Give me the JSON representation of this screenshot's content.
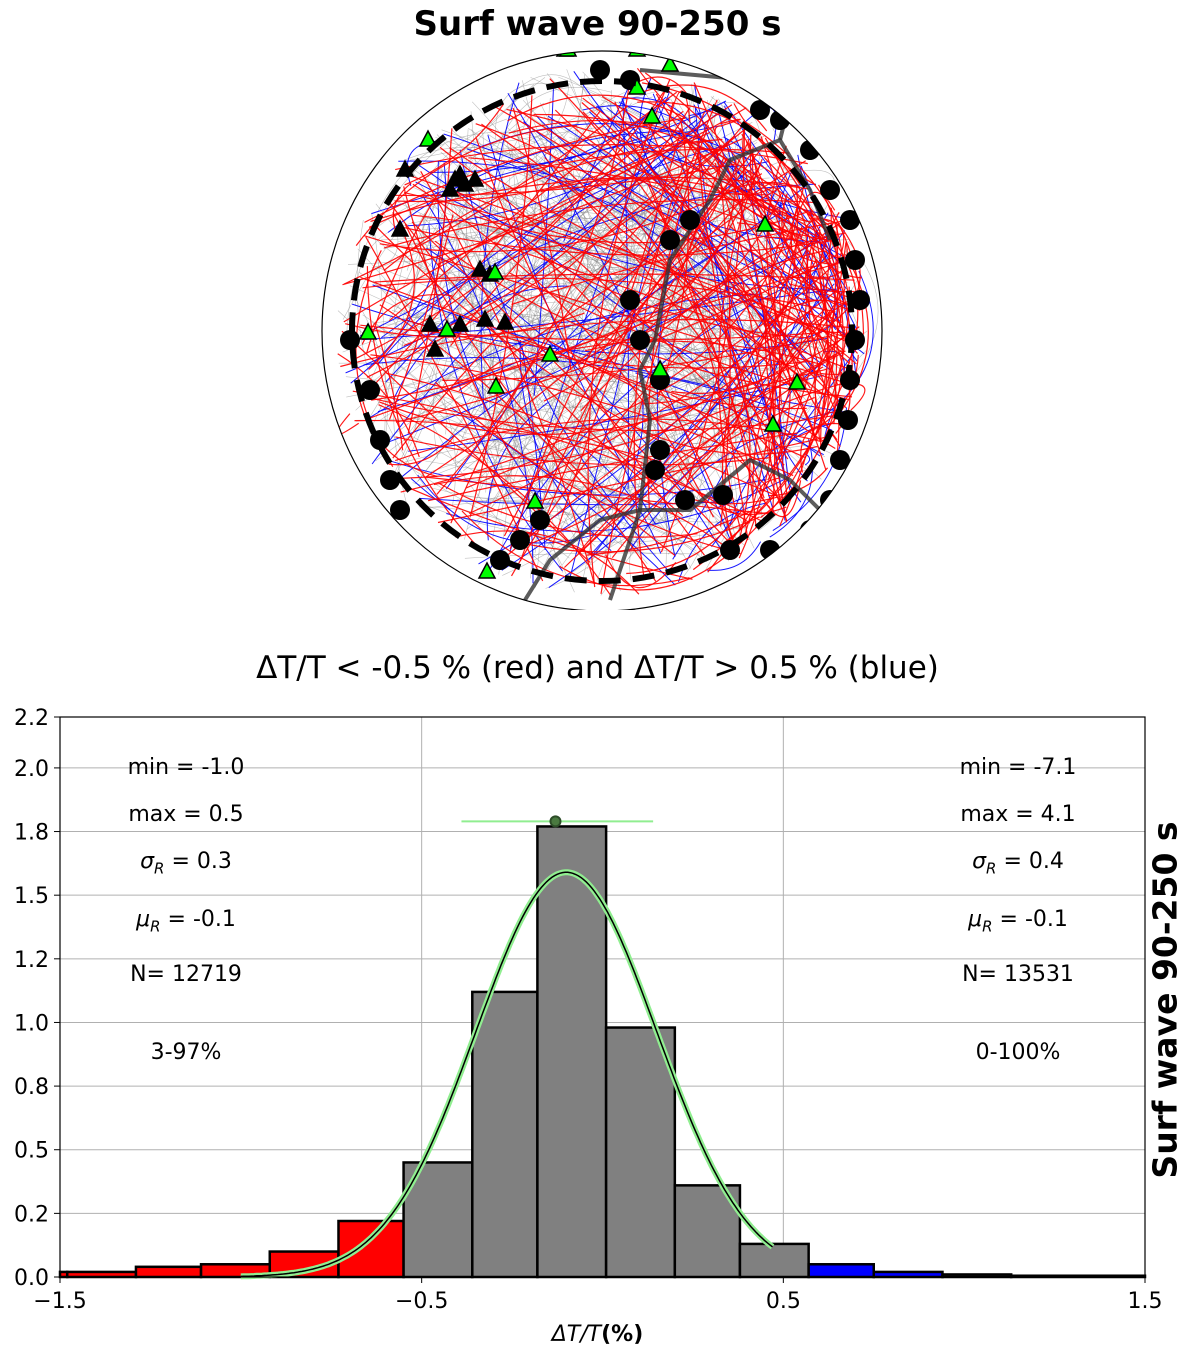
{
  "title": "Surf wave 90-250 s",
  "subtitle": "ΔT/T < -0.5 % (red)   and  ΔT/T > 0.5 %  (blue)",
  "side_label": "Surf wave 90-250 s",
  "colors": {
    "negative": "#ff0000",
    "positive": "#0000ff",
    "neutral_bar": "#808080",
    "gauss_outer": "#90ee90",
    "gauss_inner": "#000000",
    "station": "#00ff00",
    "paths_gray": "#808080"
  },
  "stats_left": {
    "min": "min = -1.0",
    "max": "max = 0.5",
    "sigma": "σ_R = 0.3",
    "mu": "μ_R = -0.1",
    "n": "N= 12719",
    "range": "3-97%"
  },
  "stats_right": {
    "min": "min = -7.1",
    "max": "max = 4.1",
    "sigma": "σ_R = 0.4",
    "mu": "μ_R = -0.1",
    "n": "N= 13531",
    "range": "0-100%"
  },
  "chart_data": {
    "type": "bar",
    "xlabel_math": "ΔT/T",
    "xlabel_unit": "(%)",
    "xlim": [
      -1.5,
      1.5
    ],
    "ylim": [
      0,
      2.2
    ],
    "xticks": [
      -1.5,
      -0.5,
      0.5,
      1.5
    ],
    "xtick_labels": [
      "−1.5",
      "−0.5",
      "0.5",
      "1.5"
    ],
    "yticks": [
      0.0,
      0.25,
      0.5,
      0.75,
      1.0,
      1.25,
      1.5,
      1.75,
      2.0,
      2.2
    ],
    "ytick_labels": [
      "0.0",
      "0.2",
      "0.5",
      "0.8",
      "1.0",
      "1.2",
      "1.5",
      "1.8",
      "2.0",
      "2.2"
    ],
    "grid": true,
    "bins": [
      {
        "x0": -1.5,
        "x1": -1.48,
        "value": 0.02,
        "color": "negative"
      },
      {
        "x0": -1.48,
        "x1": -1.29,
        "value": 0.02,
        "color": "negative"
      },
      {
        "x0": -1.29,
        "x1": -1.11,
        "value": 0.04,
        "color": "negative"
      },
      {
        "x0": -1.11,
        "x1": -0.92,
        "value": 0.05,
        "color": "negative"
      },
      {
        "x0": -0.92,
        "x1": -0.73,
        "value": 0.1,
        "color": "negative"
      },
      {
        "x0": -0.73,
        "x1": -0.55,
        "value": 0.22,
        "color": "negative"
      },
      {
        "x0": -0.55,
        "x1": -0.36,
        "value": 0.45,
        "color": "neutral_bar"
      },
      {
        "x0": -0.36,
        "x1": -0.18,
        "value": 1.12,
        "color": "neutral_bar"
      },
      {
        "x0": -0.18,
        "x1": 0.01,
        "value": 1.77,
        "color": "neutral_bar"
      },
      {
        "x0": 0.01,
        "x1": 0.2,
        "value": 0.98,
        "color": "neutral_bar"
      },
      {
        "x0": 0.2,
        "x1": 0.38,
        "value": 0.36,
        "color": "neutral_bar"
      },
      {
        "x0": 0.38,
        "x1": 0.57,
        "value": 0.13,
        "color": "neutral_bar"
      },
      {
        "x0": 0.57,
        "x1": 0.75,
        "value": 0.05,
        "color": "positive"
      },
      {
        "x0": 0.75,
        "x1": 0.94,
        "value": 0.02,
        "color": "positive"
      },
      {
        "x0": 0.94,
        "x1": 1.13,
        "value": 0.01,
        "color": "neutral_bar"
      },
      {
        "x0": 1.13,
        "x1": 1.5,
        "value": 0.005,
        "color": "neutral_bar"
      }
    ],
    "gaussian": {
      "mu": -0.1,
      "sigma": 0.25,
      "amplitude": 1.59,
      "x_start": -1.0,
      "x_end": 0.47
    },
    "marker": {
      "x": -0.13,
      "y": 1.79,
      "err_lo": -0.39,
      "err_hi": 0.14
    }
  }
}
